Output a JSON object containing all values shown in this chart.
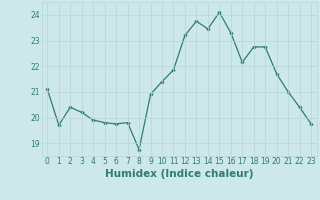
{
  "x": [
    0,
    1,
    2,
    3,
    4,
    5,
    6,
    7,
    8,
    9,
    10,
    11,
    12,
    13,
    14,
    15,
    16,
    17,
    18,
    19,
    20,
    21,
    22,
    23
  ],
  "y": [
    21.1,
    19.7,
    20.4,
    20.2,
    19.9,
    19.8,
    19.75,
    19.8,
    18.75,
    20.9,
    21.4,
    21.85,
    23.2,
    23.75,
    23.45,
    24.1,
    23.3,
    22.15,
    22.75,
    22.75,
    21.7,
    21.0,
    20.4,
    19.75
  ],
  "line_color": "#2e7d6e",
  "bg_color": "#cce8e8",
  "grid_color": "#b8d4d4",
  "xlabel": "Humidex (Indice chaleur)",
  "ylim": [
    18.5,
    24.5
  ],
  "xlim": [
    -0.5,
    23.5
  ],
  "yticks": [
    19,
    20,
    21,
    22,
    23,
    24
  ],
  "xticks": [
    0,
    1,
    2,
    3,
    4,
    5,
    6,
    7,
    8,
    9,
    10,
    11,
    12,
    13,
    14,
    15,
    16,
    17,
    18,
    19,
    20,
    21,
    22,
    23
  ],
  "tick_fontsize": 5.5,
  "xlabel_fontsize": 7.5
}
